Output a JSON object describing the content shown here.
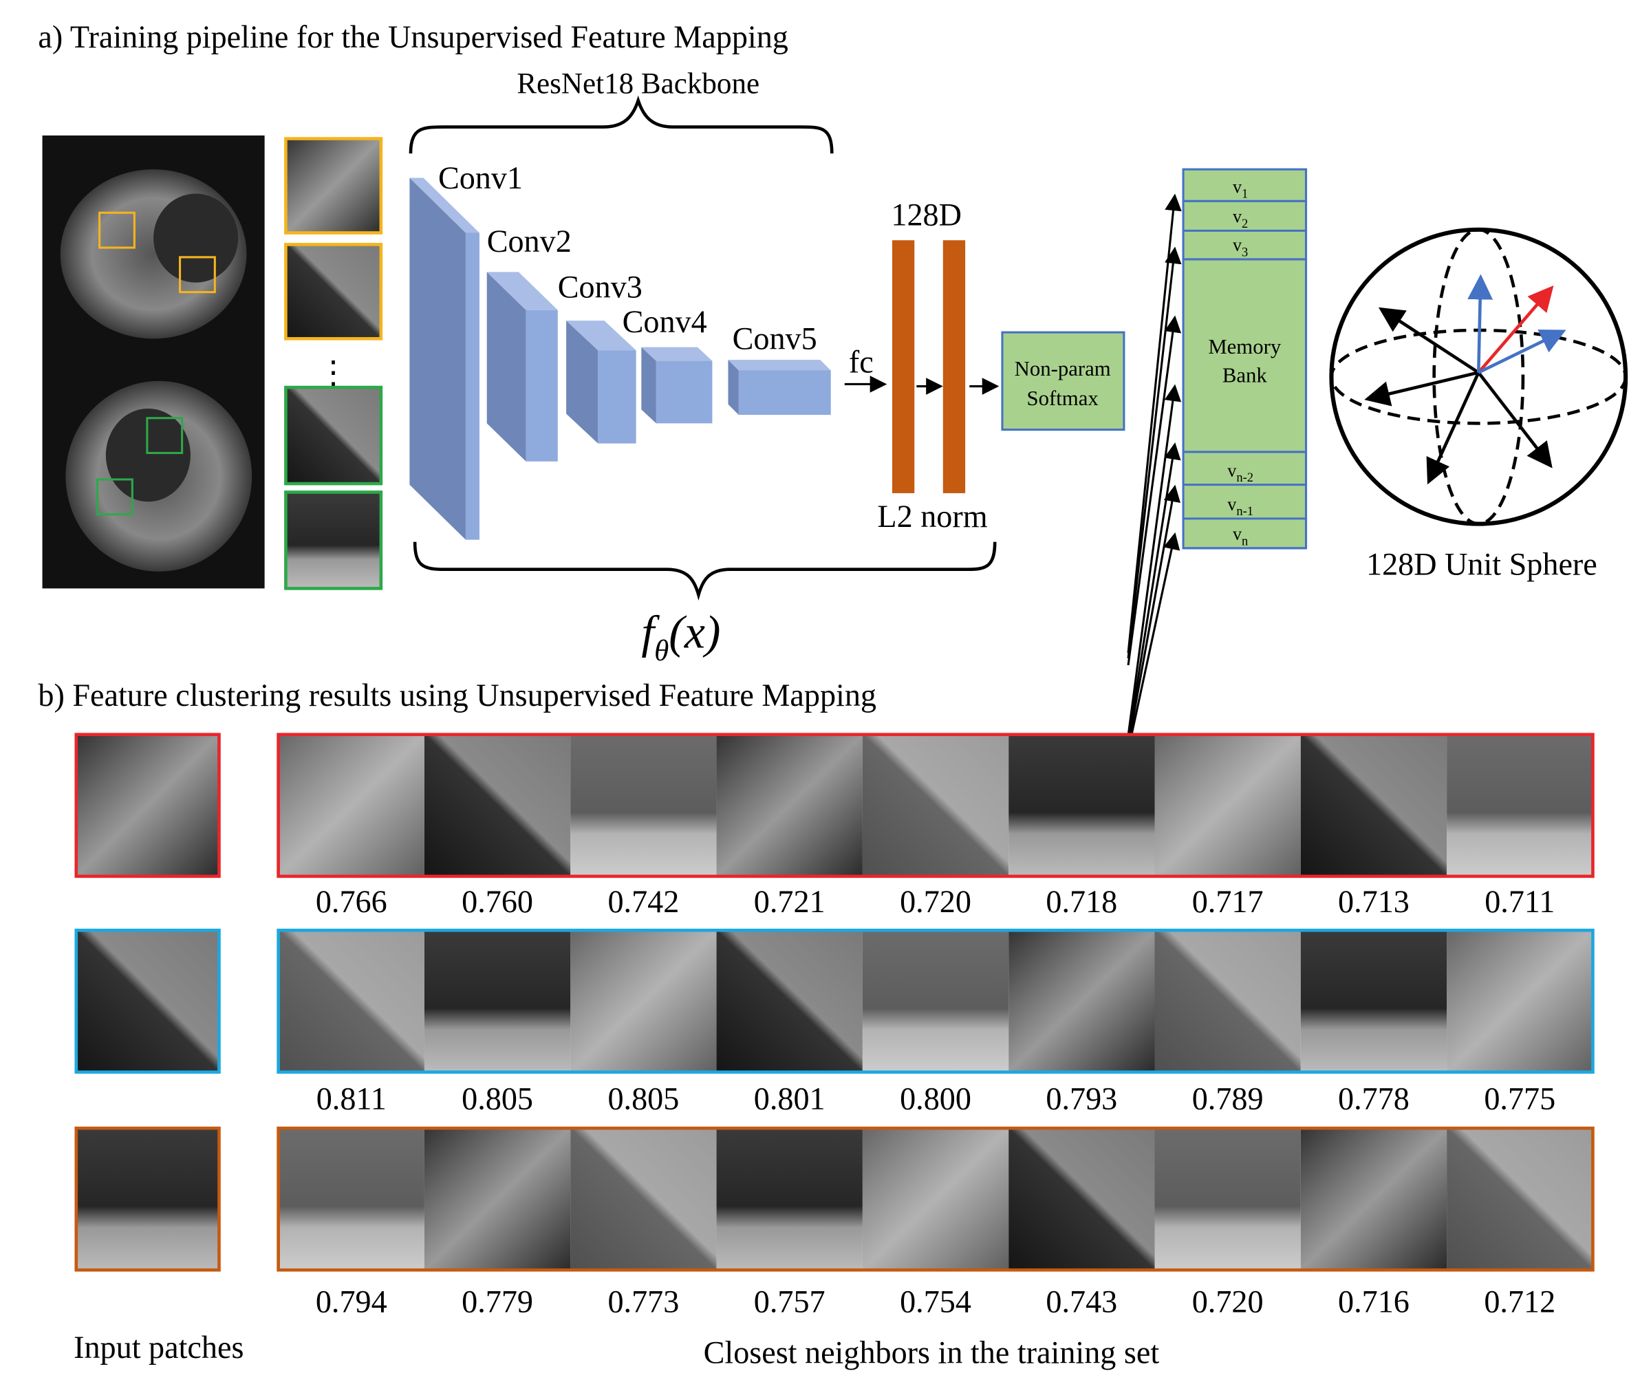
{
  "section_a": {
    "title": "a) Training pipeline for the Unsupervised Feature Mapping",
    "backbone_label": "ResNet18 Backbone",
    "conv_labels": [
      "Conv1",
      "Conv2",
      "Conv3",
      "Conv4",
      "Conv5"
    ],
    "fc_label": "fc",
    "dim_label": "128D",
    "norm_label": "L2 norm",
    "softmax_label": [
      "Non-param",
      "Softmax"
    ],
    "memory_bank": {
      "rows": [
        {
          "base": "v",
          "sub": "1"
        },
        {
          "base": "v",
          "sub": "2"
        },
        {
          "base": "v",
          "sub": "3"
        },
        {
          "base": "v",
          "sub": "n-2"
        },
        {
          "base": "v",
          "sub": "n-1"
        },
        {
          "base": "v",
          "sub": "n"
        }
      ],
      "label": [
        "Memory",
        "Bank"
      ]
    },
    "sphere_label": "128D Unit Sphere",
    "function_label": {
      "f": "f",
      "sub": "θ",
      "arg": "(x)"
    },
    "ellipsis": "⋮"
  },
  "section_b": {
    "title": "b) Feature clustering results using Unsupervised Feature Mapping",
    "input_label": "Input patches",
    "neighbors_label": "Closest neighbors in the training set",
    "rows": [
      {
        "color": "#e8262a",
        "scores": [
          "0.766",
          "0.760",
          "0.742",
          "0.721",
          "0.720",
          "0.718",
          "0.717",
          "0.713",
          "0.711"
        ]
      },
      {
        "color": "#1ca8e0",
        "scores": [
          "0.811",
          "0.805",
          "0.805",
          "0.801",
          "0.800",
          "0.793",
          "0.789",
          "0.778",
          "0.775"
        ]
      },
      {
        "color": "#c55a11",
        "scores": [
          "0.794",
          "0.779",
          "0.773",
          "0.757",
          "0.754",
          "0.743",
          "0.720",
          "0.716",
          "0.712"
        ]
      }
    ]
  },
  "colors": {
    "conv_front": "#8faadc",
    "conv_side": "#6f86b8",
    "bar": "#c55a11",
    "green": "#a9d18e",
    "blue_border": "#4472c4",
    "yellow": "#f5b41e",
    "patch_green": "#2ea84a"
  }
}
